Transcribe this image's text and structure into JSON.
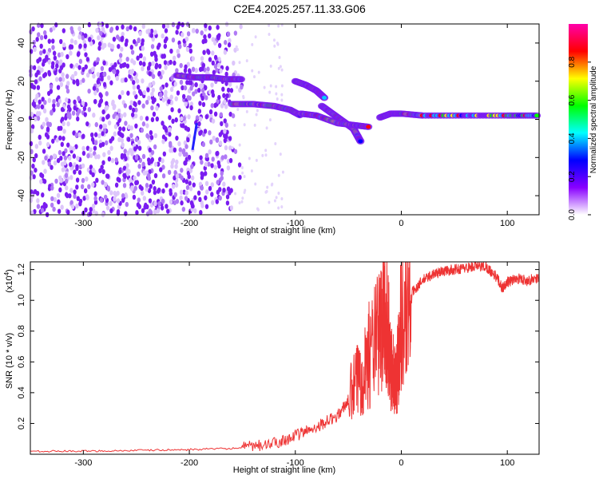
{
  "title": "C2E4.2025.257.11.33.G06",
  "chart_data": [
    {
      "type": "heatmap",
      "xlabel": "Height of straight line (km)",
      "ylabel": "Frequency (Hz)",
      "xlim": [
        -350,
        130
      ],
      "ylim": [
        -50,
        50
      ],
      "xticks": [
        -300,
        -200,
        -100,
        0,
        100
      ],
      "yticks": [
        -40,
        -20,
        0,
        20,
        40
      ],
      "colorbar": {
        "label": "Normalized spectral amplitude",
        "range": [
          0,
          1
        ],
        "ticks": [
          "0.0",
          "0.2",
          "0.4",
          "0.6",
          "0.8"
        ],
        "colors": [
          "#ffffff",
          "#8800ff",
          "#0000ff",
          "#00ffff",
          "#00ff00",
          "#ffff00",
          "#ff0000",
          "#ff00aa"
        ]
      },
      "traces": [
        {
          "x": [
            -212,
            -195,
            -180,
            -165,
            -150
          ],
          "y": [
            23,
            22,
            22,
            21,
            21
          ]
        },
        {
          "x": [
            -160,
            -140,
            -120,
            -105,
            -95
          ],
          "y": [
            8,
            8,
            7,
            5,
            2
          ]
        },
        {
          "x": [
            -100,
            -90,
            -80,
            -72
          ],
          "y": [
            20,
            18,
            15,
            11
          ]
        },
        {
          "x": [
            -75,
            -65,
            -55,
            -45,
            -38
          ],
          "y": [
            7,
            3,
            -1,
            -5,
            -12
          ]
        },
        {
          "x": [
            -95,
            -80,
            -60,
            -45,
            -30
          ],
          "y": [
            3,
            2,
            -2,
            -3,
            -4
          ]
        },
        {
          "x": [
            -20,
            -10,
            0,
            20,
            60,
            100,
            130
          ],
          "y": [
            1,
            3,
            3,
            2,
            2,
            2,
            2
          ]
        }
      ]
    },
    {
      "type": "line",
      "xlabel": "Height of straight line (km)",
      "ylabel": "SNR (10 * v/v)",
      "yscale_label": "(x10",
      "yscale_exp": "4",
      "xlim": [
        -350,
        130
      ],
      "ylim": [
        0,
        12500
      ],
      "xticks": [
        -300,
        -200,
        -100,
        0,
        100
      ],
      "yticks": [
        "0.2",
        "0.4",
        "0.6",
        "0.8",
        "1.0",
        "1.2"
      ],
      "color": "#ee3333",
      "series": [
        {
          "x": [
            -350,
            -300,
            -250,
            -200,
            -150,
            -120,
            -100,
            -80,
            -60,
            -50,
            -40,
            -30,
            -20,
            -15,
            -10,
            -5,
            0,
            10,
            20,
            30,
            40,
            50,
            60,
            70,
            80,
            90,
            95,
            100,
            110,
            120,
            130
          ],
          "y": [
            200,
            200,
            250,
            300,
            400,
            700,
            1200,
            1800,
            2500,
            3500,
            5000,
            6500,
            8000,
            9500,
            6000,
            4500,
            9000,
            10500,
            11300,
            11700,
            11900,
            12000,
            12100,
            12200,
            12200,
            11500,
            10800,
            11200,
            11400,
            11300,
            11500
          ]
        }
      ]
    }
  ]
}
